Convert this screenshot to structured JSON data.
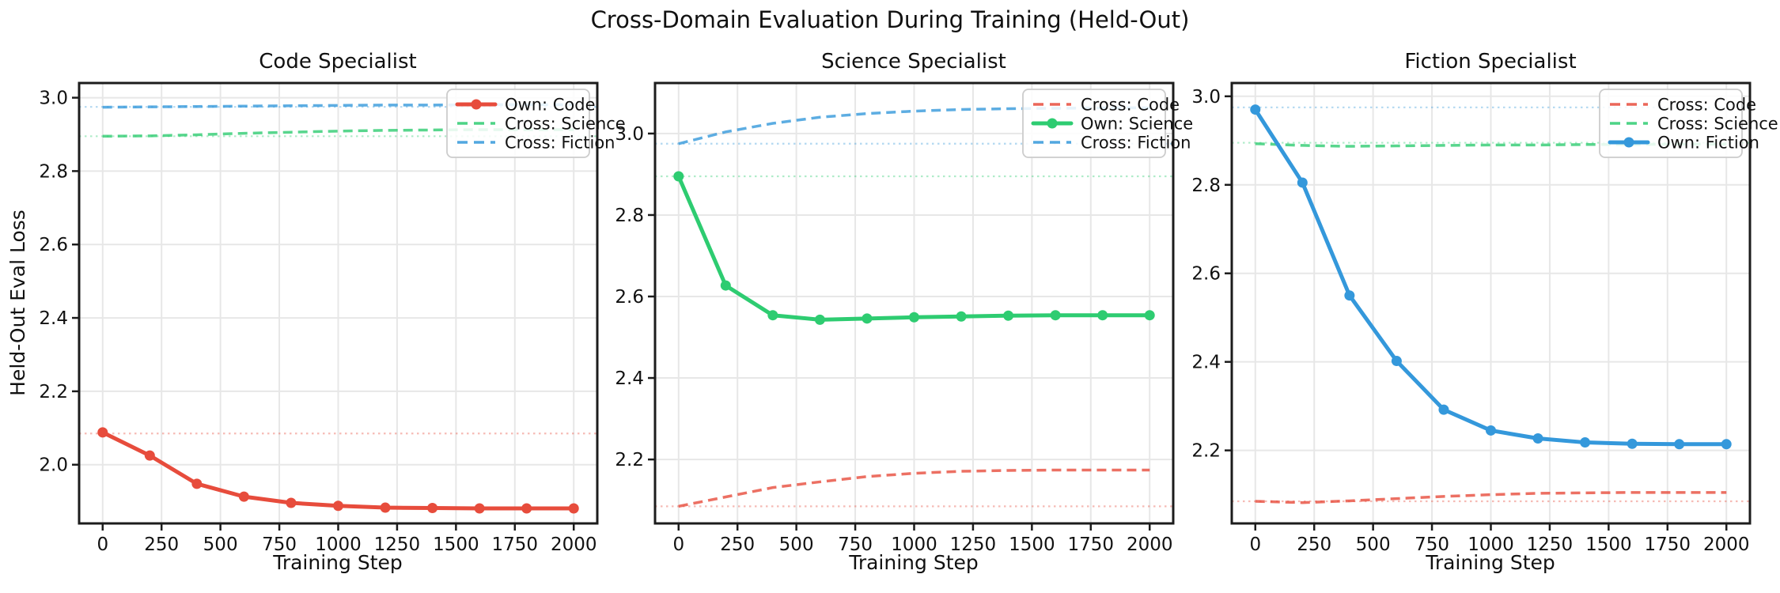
{
  "figure": {
    "title": "Cross-Domain Evaluation During Training (Held-Out)",
    "ylabel": "Held-Out Eval Loss",
    "xlabel": "Training Step"
  },
  "colors": {
    "code": "#e74c3c",
    "science": "#2ecc71",
    "fiction": "#3498db",
    "grid": "#e7e7e7",
    "spine": "#1c1c1c",
    "text": "#111111",
    "legend_border": "#cccccc",
    "legend_bg": "#ffffff"
  },
  "baselines": {
    "code": 2.085,
    "science": 2.895,
    "fiction": 2.975
  },
  "chart_data": [
    {
      "type": "line",
      "title": "Code Specialist",
      "xlabel": "Training Step",
      "ylabel": "Held-Out Eval Loss",
      "x": [
        0,
        200,
        400,
        600,
        800,
        1000,
        1200,
        1400,
        1600,
        1800,
        2000
      ],
      "xticks": [
        0,
        250,
        500,
        750,
        1000,
        1250,
        1500,
        1750,
        2000
      ],
      "yticks": [
        2.0,
        2.2,
        2.4,
        2.6,
        2.8,
        3.0
      ],
      "xlim": [
        -100,
        2100
      ],
      "ylim": [
        1.84,
        3.04
      ],
      "grid": true,
      "legend_position": "upper right",
      "series": [
        {
          "label": "Own: Code",
          "domain": "code",
          "role": "own",
          "style": "solid",
          "marker": true,
          "values": [
            2.088,
            2.025,
            1.948,
            1.913,
            1.896,
            1.888,
            1.883,
            1.882,
            1.881,
            1.881,
            1.881
          ]
        },
        {
          "label": "Cross: Science",
          "domain": "science",
          "role": "cross",
          "style": "dashed",
          "marker": false,
          "values": [
            2.895,
            2.896,
            2.899,
            2.903,
            2.906,
            2.909,
            2.911,
            2.912,
            2.913,
            2.913,
            2.913
          ]
        },
        {
          "label": "Cross: Fiction",
          "domain": "fiction",
          "role": "cross",
          "style": "dashed",
          "marker": false,
          "values": [
            2.974,
            2.975,
            2.976,
            2.977,
            2.978,
            2.979,
            2.98,
            2.98,
            2.981,
            2.981,
            2.981
          ]
        }
      ]
    },
    {
      "type": "line",
      "title": "Science Specialist",
      "xlabel": "Training Step",
      "x": [
        0,
        200,
        400,
        600,
        800,
        1000,
        1200,
        1400,
        1600,
        1800,
        2000
      ],
      "xticks": [
        0,
        250,
        500,
        750,
        1000,
        1250,
        1500,
        1750,
        2000
      ],
      "yticks": [
        2.2,
        2.4,
        2.6,
        2.8,
        3.0
      ],
      "xlim": [
        -100,
        2100
      ],
      "ylim": [
        2.043,
        3.124
      ],
      "grid": true,
      "legend_position": "upper right",
      "series": [
        {
          "label": "Cross: Code",
          "domain": "code",
          "role": "cross",
          "style": "dashed",
          "marker": false,
          "values": [
            2.085,
            2.108,
            2.131,
            2.145,
            2.158,
            2.166,
            2.171,
            2.173,
            2.174,
            2.174,
            2.174
          ]
        },
        {
          "label": "Own: Science",
          "domain": "science",
          "role": "own",
          "style": "solid",
          "marker": true,
          "values": [
            2.895,
            2.627,
            2.554,
            2.543,
            2.546,
            2.549,
            2.551,
            2.553,
            2.554,
            2.554,
            2.554
          ]
        },
        {
          "label": "Cross: Fiction",
          "domain": "fiction",
          "role": "cross",
          "style": "dashed",
          "marker": false,
          "values": [
            2.975,
            3.004,
            3.025,
            3.04,
            3.049,
            3.055,
            3.059,
            3.061,
            3.062,
            3.063,
            3.063
          ]
        }
      ]
    },
    {
      "type": "line",
      "title": "Fiction Specialist",
      "xlabel": "Training Step",
      "x": [
        0,
        200,
        400,
        600,
        800,
        1000,
        1200,
        1400,
        1600,
        1800,
        2000
      ],
      "xticks": [
        0,
        250,
        500,
        750,
        1000,
        1250,
        1500,
        1750,
        2000
      ],
      "yticks": [
        2.2,
        2.4,
        2.6,
        2.8,
        3.0
      ],
      "xlim": [
        -100,
        2100
      ],
      "ylim": [
        2.035,
        3.03
      ],
      "grid": true,
      "legend_position": "upper right",
      "series": [
        {
          "label": "Cross: Code",
          "domain": "code",
          "role": "cross",
          "style": "dashed",
          "marker": false,
          "values": [
            2.085,
            2.082,
            2.086,
            2.091,
            2.096,
            2.1,
            2.103,
            2.104,
            2.105,
            2.105,
            2.105
          ]
        },
        {
          "label": "Cross: Science",
          "domain": "science",
          "role": "cross",
          "style": "dashed",
          "marker": false,
          "values": [
            2.893,
            2.889,
            2.887,
            2.888,
            2.889,
            2.89,
            2.89,
            2.891,
            2.891,
            2.892,
            2.892
          ]
        },
        {
          "label": "Own: Fiction",
          "domain": "fiction",
          "role": "own",
          "style": "solid",
          "marker": true,
          "values": [
            2.97,
            2.805,
            2.55,
            2.402,
            2.292,
            2.245,
            2.227,
            2.218,
            2.215,
            2.214,
            2.214
          ]
        }
      ]
    }
  ]
}
